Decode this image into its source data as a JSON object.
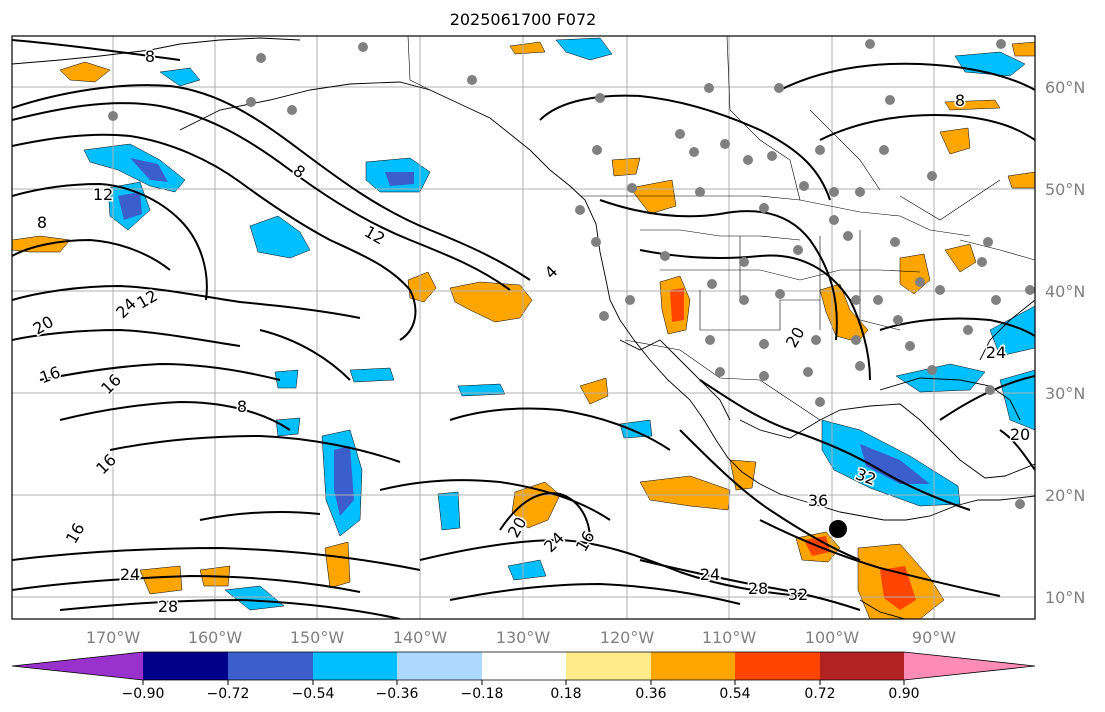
{
  "title": "2025061700 F072",
  "lat_labels": [
    "60°N",
    "50°N",
    "40°N",
    "30°N",
    "20°N",
    "10°N"
  ],
  "lon_labels": [
    "170°W",
    "160°W",
    "150°W",
    "140°W",
    "130°W",
    "120°W",
    "110°W",
    "100°W",
    "90°W"
  ],
  "colorbar": {
    "colors": [
      "#9932cc",
      "#00008b",
      "#3a5fcd",
      "#00bfff",
      "#add8ff",
      "#ffffff",
      "#ffeb8a",
      "#ffa500",
      "#ff4500",
      "#b22222",
      "#ff8cb4"
    ],
    "tick_labels": [
      "−0.90",
      "−0.72",
      "−0.54",
      "−0.36",
      "−0.18",
      "0.18",
      "0.36",
      "0.54",
      "0.72",
      "0.90"
    ]
  },
  "contour_labels": [
    "8",
    "12",
    "8",
    "12",
    "8",
    "12",
    "20",
    "24",
    "16",
    "16",
    "8",
    "4",
    "16",
    "20",
    "24",
    "16",
    "20",
    "24",
    "24",
    "28",
    "28",
    "32",
    "36",
    "32",
    "24",
    "20",
    "16",
    "8"
  ]
}
